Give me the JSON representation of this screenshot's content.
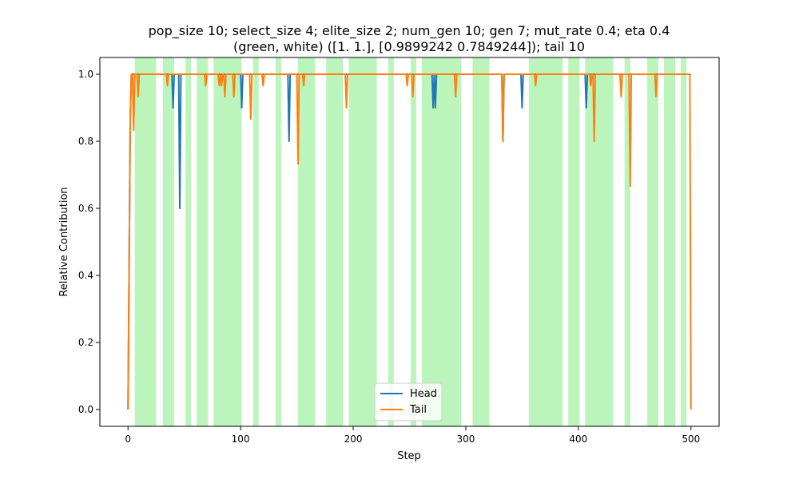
{
  "chart_data": {
    "type": "line",
    "title_line1": "pop_size 10; select_size 4; elite_size 2; num_gen 10; gen 7; mut_rate 0.4; eta 0.4",
    "title_line2": "(green, white) ([1. 1.], [0.9899242 0.7849244]); tail 10",
    "xlabel": "Step",
    "ylabel": "Relative Contribution",
    "xlim": [
      -25,
      525
    ],
    "ylim": [
      -0.05,
      1.05
    ],
    "xticks": [
      0,
      100,
      200,
      300,
      400,
      500
    ],
    "yticks": [
      0.0,
      0.2,
      0.4,
      0.6,
      0.8,
      1.0
    ],
    "xtick_labels": [
      "0",
      "100",
      "200",
      "300",
      "400",
      "500"
    ],
    "ytick_labels": [
      "0.0",
      "0.2",
      "0.4",
      "0.6",
      "0.8",
      "1.0"
    ],
    "grid": false,
    "legend_position": "lower center",
    "shaded_color": "#90ee90",
    "shaded_regions": [
      [
        6,
        25
      ],
      [
        31,
        41
      ],
      [
        51,
        56
      ],
      [
        61,
        71
      ],
      [
        76,
        101
      ],
      [
        111,
        116
      ],
      [
        131,
        136
      ],
      [
        151,
        166
      ],
      [
        176,
        191
      ],
      [
        196,
        221
      ],
      [
        231,
        236
      ],
      [
        251,
        256
      ],
      [
        261,
        296
      ],
      [
        306,
        321
      ],
      [
        356,
        386
      ],
      [
        391,
        401
      ],
      [
        406,
        431
      ],
      [
        441,
        446
      ],
      [
        461,
        471
      ],
      [
        476,
        486
      ],
      [
        491,
        496
      ]
    ],
    "series": [
      {
        "name": "Head",
        "color": "#1f77b4",
        "points": [
          [
            0,
            0.0
          ],
          [
            2,
            0.87
          ],
          [
            3,
            1.0
          ],
          [
            39,
            1.0
          ],
          [
            40,
            0.9
          ],
          [
            41,
            1.0
          ],
          [
            45,
            1.0
          ],
          [
            46,
            0.6
          ],
          [
            47,
            1.0
          ],
          [
            100,
            1.0
          ],
          [
            101,
            0.9
          ],
          [
            102,
            1.0
          ],
          [
            142,
            1.0
          ],
          [
            143,
            0.8
          ],
          [
            144,
            1.0
          ],
          [
            270,
            1.0
          ],
          [
            271,
            0.9
          ],
          [
            272,
            1.0
          ],
          [
            273,
            0.9
          ],
          [
            274,
            1.0
          ],
          [
            332,
            1.0
          ],
          [
            333,
            0.8
          ],
          [
            334,
            1.0
          ],
          [
            349,
            1.0
          ],
          [
            350,
            0.9
          ],
          [
            351,
            1.0
          ],
          [
            406,
            1.0
          ],
          [
            407,
            0.9
          ],
          [
            408,
            1.0
          ],
          [
            500,
            1.0
          ]
        ]
      },
      {
        "name": "Tail",
        "color": "#ff7f0e",
        "points": [
          [
            0,
            0.0
          ],
          [
            2,
            0.88
          ],
          [
            3,
            1.0
          ],
          [
            4,
            1.0
          ],
          [
            5,
            0.833
          ],
          [
            6,
            1.0
          ],
          [
            8,
            1.0
          ],
          [
            9,
            0.933
          ],
          [
            10,
            1.0
          ],
          [
            34,
            1.0
          ],
          [
            35,
            0.966
          ],
          [
            36,
            1.0
          ],
          [
            68,
            1.0
          ],
          [
            69,
            0.966
          ],
          [
            70,
            1.0
          ],
          [
            80,
            1.0
          ],
          [
            81,
            0.966
          ],
          [
            82,
            1.0
          ],
          [
            83,
            0.966
          ],
          [
            84,
            1.0
          ],
          [
            85,
            1.0
          ],
          [
            86,
            0.933
          ],
          [
            87,
            1.0
          ],
          [
            93,
            1.0
          ],
          [
            94,
            0.933
          ],
          [
            95,
            1.0
          ],
          [
            108,
            1.0
          ],
          [
            109,
            0.866
          ],
          [
            110,
            1.0
          ],
          [
            119,
            1.0
          ],
          [
            120,
            0.966
          ],
          [
            121,
            1.0
          ],
          [
            150,
            1.0
          ],
          [
            151,
            0.733
          ],
          [
            152,
            1.0
          ],
          [
            155,
            1.0
          ],
          [
            156,
            0.966
          ],
          [
            157,
            1.0
          ],
          [
            193,
            1.0
          ],
          [
            194,
            0.9
          ],
          [
            195,
            1.0
          ],
          [
            247,
            1.0
          ],
          [
            248,
            0.966
          ],
          [
            249,
            1.0
          ],
          [
            252,
            1.0
          ],
          [
            253,
            0.933
          ],
          [
            254,
            1.0
          ],
          [
            290,
            1.0
          ],
          [
            291,
            0.933
          ],
          [
            292,
            1.0
          ],
          [
            332,
            1.0
          ],
          [
            333,
            0.8
          ],
          [
            334,
            1.0
          ],
          [
            361,
            1.0
          ],
          [
            362,
            0.966
          ],
          [
            363,
            1.0
          ],
          [
            410,
            1.0
          ],
          [
            411,
            0.966
          ],
          [
            412,
            1.0
          ],
          [
            413,
            1.0
          ],
          [
            414,
            0.8
          ],
          [
            415,
            1.0
          ],
          [
            437,
            1.0
          ],
          [
            438,
            0.933
          ],
          [
            439,
            1.0
          ],
          [
            445,
            1.0
          ],
          [
            446,
            0.666
          ],
          [
            447,
            1.0
          ],
          [
            468,
            1.0
          ],
          [
            469,
            0.933
          ],
          [
            470,
            1.0
          ],
          [
            499,
            1.0
          ],
          [
            500,
            0.0
          ]
        ]
      }
    ]
  }
}
